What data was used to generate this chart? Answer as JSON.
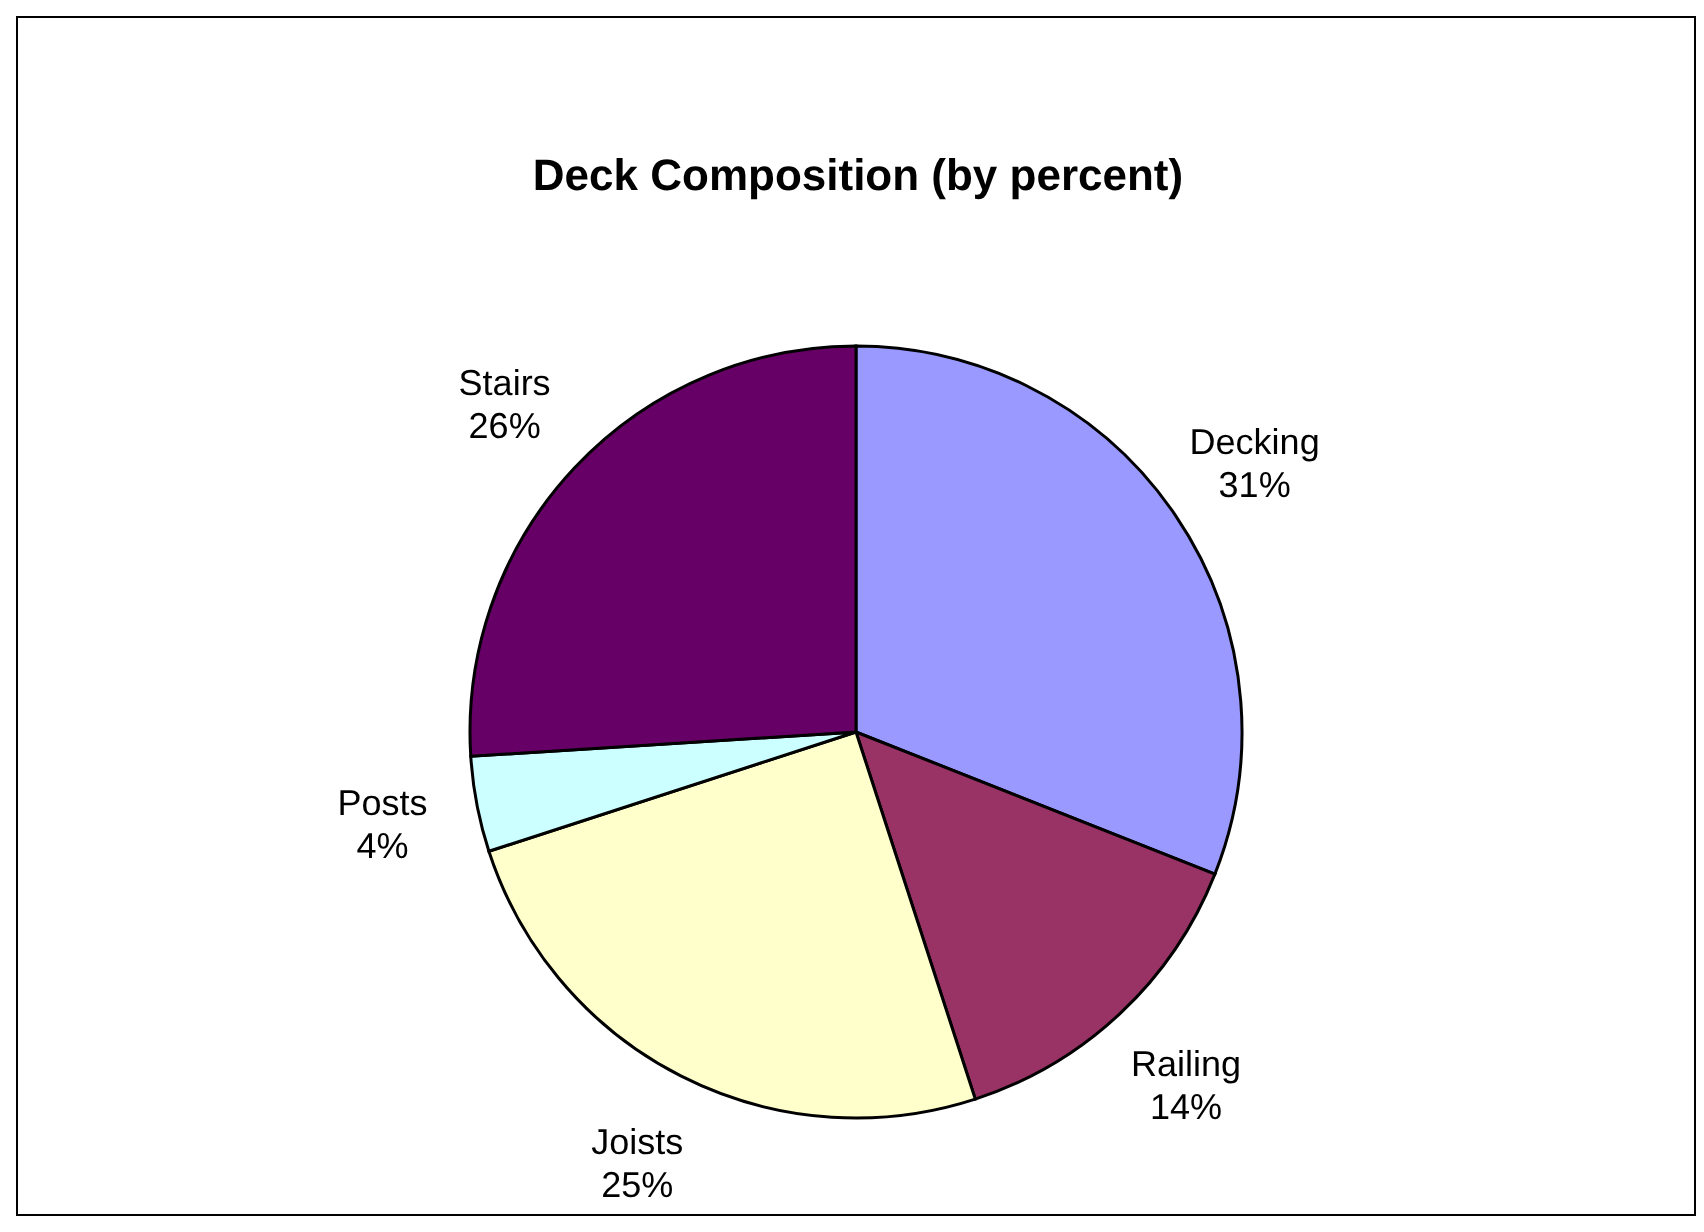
{
  "chart_data": {
    "type": "pie",
    "title": "Deck Composition (by percent)",
    "categories": [
      "Decking",
      "Railing",
      "Joists",
      "Posts",
      "Stairs"
    ],
    "values": [
      31,
      14,
      25,
      4,
      26
    ],
    "colors": [
      "#9999ff",
      "#993366",
      "#ffffcc",
      "#ccffff",
      "#660066"
    ],
    "value_labels": [
      "31%",
      "14%",
      "25%",
      "4%",
      "26%"
    ],
    "legend": false
  }
}
